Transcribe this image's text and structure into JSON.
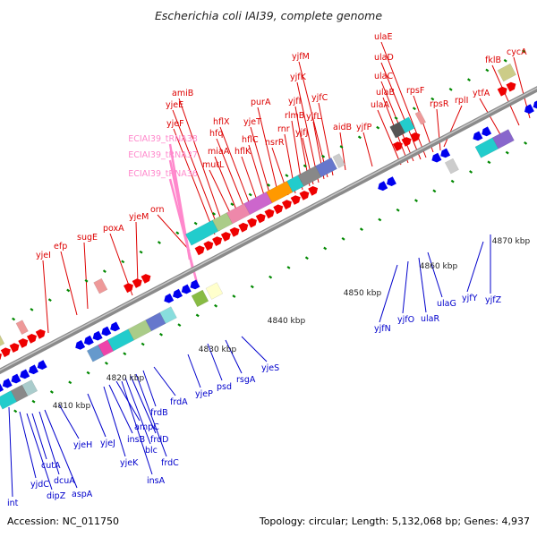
{
  "title": "Escherichia coli IAI39, complete genome",
  "footer": {
    "accession": "Accession: NC_011750",
    "summary": "Topology: circular; Length: 5,132,068 bp; Genes: 4,937"
  },
  "colors": {
    "upper_label": "#dd0000",
    "lower_label": "#0000cc",
    "trna_label": "#ff88cc",
    "forward_arrow": "#ee0000",
    "reverse_arrow": "#0000ee",
    "backbone": "#8a8a8a",
    "tick": "#008800"
  },
  "scale_labels": [
    "4810 kbp",
    "4820 kbp",
    "4830 kbp",
    "4840 kbp",
    "4850 kbp",
    "4860 kbp",
    "4870 kbp"
  ],
  "upper_genes": [
    "int",
    "yjeI",
    "efp",
    "sugE",
    "poxA",
    "yjeM",
    "orn",
    "ECIAI39_tRNA36",
    "ECIAI39_tRNA37",
    "ECIAI39_tRNA38",
    "amiB",
    "yjeE",
    "yjeF",
    "mutL",
    "miaA",
    "hfq",
    "hflX",
    "hflK",
    "hflC",
    "yjeT",
    "purA",
    "nsrR",
    "rnr",
    "rlmB",
    "yjfI",
    "yjfJ",
    "yjfK",
    "yjfL",
    "yjfM",
    "yjfC",
    "aidB",
    "yjfP",
    "ulaA",
    "ulaB",
    "ulaC",
    "ulaD",
    "ulaE",
    "rpsF",
    "rpsR",
    "rplI",
    "ytfA",
    "fklB",
    "cycA"
  ],
  "lower_genes": [
    "int",
    "yjdC",
    "dipZ",
    "cutA",
    "dcuA",
    "aspA",
    "yjeH",
    "yjeJ",
    "yjeK",
    "insB",
    "insA",
    "ampC",
    "blc",
    "frdD",
    "frdC",
    "frdB",
    "frdA",
    "yjeP",
    "psd",
    "rsgA",
    "yjeS",
    "yjfN",
    "yjfO",
    "ulaR",
    "ulaG",
    "yjfY",
    "yjfZ"
  ]
}
